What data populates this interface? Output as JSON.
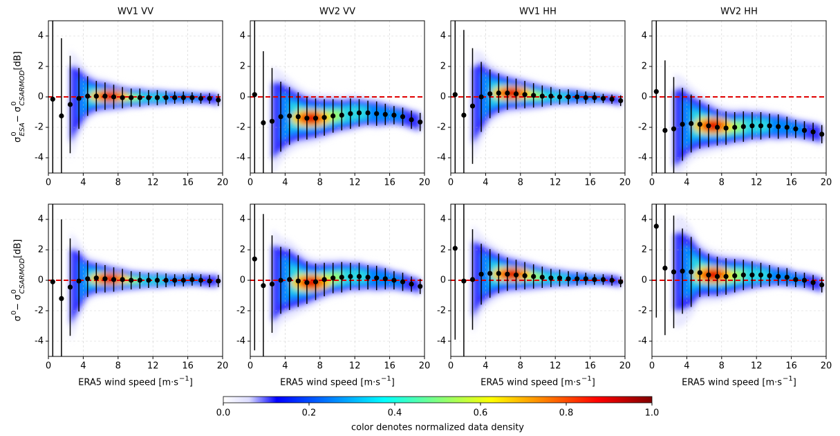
{
  "chart_data": [
    {
      "type": "errorbar",
      "title": "WV1 VV",
      "ylabel": [
        {
          "base": "σ",
          "sup": "0",
          "sub": "ESA"
        },
        {
          "base": " − σ",
          "sup": "0",
          "sub": "CSARMOD"
        },
        {
          "base": " [dB]"
        }
      ],
      "x": [
        0.5,
        1.5,
        2.5,
        3.5,
        4.5,
        5.5,
        6.5,
        7.5,
        8.5,
        9.5,
        10.5,
        11.5,
        12.5,
        13.5,
        14.5,
        15.5,
        16.5,
        17.5,
        18.5,
        19.5
      ],
      "values": [
        -0.15,
        -1.25,
        -0.5,
        -0.1,
        0.05,
        0.05,
        0.05,
        0.0,
        -0.05,
        -0.05,
        -0.05,
        -0.05,
        -0.05,
        -0.05,
        -0.05,
        -0.05,
        -0.05,
        -0.1,
        -0.1,
        -0.2
      ],
      "errors": [
        6,
        5.1,
        3.2,
        2.0,
        1.3,
        1.0,
        0.9,
        0.8,
        0.7,
        0.6,
        0.6,
        0.5,
        0.5,
        0.45,
        0.4,
        0.4,
        0.35,
        0.35,
        0.35,
        0.4
      ],
      "hline": 0,
      "hline_color": "#e00000",
      "color": "#000000",
      "xlim": [
        0,
        20
      ],
      "ylim": [
        -5,
        5
      ],
      "xticks": [
        0,
        4,
        8,
        12,
        16,
        20
      ],
      "yticks": [
        -4,
        -2,
        0,
        2,
        4
      ],
      "grid": true
    },
    {
      "type": "errorbar",
      "title": "WV2 VV",
      "x": [
        0.5,
        1.5,
        2.5,
        3.5,
        4.5,
        5.5,
        6.5,
        7.5,
        8.5,
        9.5,
        10.5,
        11.5,
        12.5,
        13.5,
        14.5,
        15.5,
        16.5,
        17.5,
        18.5,
        19.5
      ],
      "values": [
        0.15,
        -1.7,
        -1.6,
        -1.3,
        -1.25,
        -1.3,
        -1.4,
        -1.4,
        -1.35,
        -1.25,
        -1.2,
        -1.1,
        -1.05,
        -1.05,
        -1.1,
        -1.15,
        -1.2,
        -1.3,
        -1.5,
        -1.65
      ],
      "errors": [
        6,
        4.7,
        3.5,
        2.3,
        1.9,
        1.6,
        1.4,
        1.3,
        1.2,
        1.1,
        1.0,
        1.0,
        0.9,
        0.8,
        0.8,
        0.7,
        0.6,
        0.6,
        0.6,
        0.6
      ],
      "hline": 0,
      "hline_color": "#e00000",
      "color": "#000000",
      "xlim": [
        0,
        20
      ],
      "ylim": [
        -5,
        5
      ],
      "xticks": [
        0,
        4,
        8,
        12,
        16,
        20
      ],
      "yticks": [
        -4,
        -2,
        0,
        2,
        4
      ],
      "grid": true
    },
    {
      "type": "errorbar",
      "title": "WV1 HH",
      "x": [
        0.5,
        1.5,
        2.5,
        3.5,
        4.5,
        5.5,
        6.5,
        7.5,
        8.5,
        9.5,
        10.5,
        11.5,
        12.5,
        13.5,
        14.5,
        15.5,
        16.5,
        17.5,
        18.5,
        19.5
      ],
      "values": [
        0.15,
        -1.2,
        -0.6,
        0.0,
        0.2,
        0.25,
        0.25,
        0.2,
        0.15,
        0.1,
        0.05,
        0.05,
        0.0,
        0.0,
        0.0,
        -0.05,
        -0.05,
        -0.1,
        -0.15,
        -0.25
      ],
      "errors": [
        6,
        5.6,
        3.8,
        2.3,
        1.6,
        1.3,
        1.1,
        1.0,
        0.9,
        0.8,
        0.7,
        0.6,
        0.5,
        0.5,
        0.45,
        0.4,
        0.35,
        0.3,
        0.3,
        0.35
      ],
      "hline": 0,
      "hline_color": "#e00000",
      "color": "#000000",
      "xlim": [
        0,
        20
      ],
      "ylim": [
        -5,
        5
      ],
      "xticks": [
        0,
        4,
        8,
        12,
        16,
        20
      ],
      "yticks": [
        -4,
        -2,
        0,
        2,
        4
      ],
      "grid": true
    },
    {
      "type": "errorbar",
      "title": "WV2 HH",
      "x": [
        0.5,
        1.5,
        2.5,
        3.5,
        4.5,
        5.5,
        6.5,
        7.5,
        8.5,
        9.5,
        10.5,
        11.5,
        12.5,
        13.5,
        14.5,
        15.5,
        16.5,
        17.5,
        18.5,
        19.5
      ],
      "values": [
        0.35,
        -2.2,
        -2.1,
        -1.8,
        -1.75,
        -1.8,
        -1.9,
        -2.0,
        -2.05,
        -2.0,
        -1.95,
        -1.9,
        -1.9,
        -1.9,
        -1.95,
        -2.0,
        -2.1,
        -2.2,
        -2.3,
        -2.45
      ],
      "errors": [
        6,
        4.6,
        3.4,
        2.4,
        1.9,
        1.6,
        1.4,
        1.2,
        1.1,
        1.0,
        1.0,
        0.9,
        0.9,
        0.8,
        0.8,
        0.7,
        0.6,
        0.6,
        0.6,
        0.6
      ],
      "hline": 0,
      "hline_color": "#e00000",
      "color": "#000000",
      "xlim": [
        0,
        20
      ],
      "ylim": [
        -5,
        5
      ],
      "xticks": [
        0,
        4,
        8,
        12,
        16,
        20
      ],
      "yticks": [
        -4,
        -2,
        0,
        2,
        4
      ],
      "grid": true
    },
    {
      "type": "errorbar",
      "ylabel": [
        {
          "base": "σ",
          "sup": "0"
        },
        {
          "base": " − σ",
          "sup": "0",
          "sub": "CSARMOD"
        },
        {
          "base": " [dB]"
        }
      ],
      "xlabel": [
        {
          "base": "ERA5 wind speed [m·s",
          "sup": "−1"
        },
        {
          "base": "]"
        }
      ],
      "x": [
        0.5,
        1.5,
        2.5,
        3.5,
        4.5,
        5.5,
        6.5,
        7.5,
        8.5,
        9.5,
        10.5,
        11.5,
        12.5,
        13.5,
        14.5,
        15.5,
        16.5,
        17.5,
        18.5,
        19.5
      ],
      "values": [
        -0.1,
        -1.2,
        -0.45,
        -0.05,
        0.1,
        0.15,
        0.1,
        0.05,
        0.05,
        0.0,
        0.0,
        0.0,
        0.0,
        0.0,
        0.0,
        0.0,
        0.05,
        0.0,
        -0.05,
        -0.05
      ],
      "errors": [
        6,
        5.2,
        3.2,
        2.0,
        1.2,
        1.0,
        0.9,
        0.8,
        0.7,
        0.6,
        0.55,
        0.5,
        0.5,
        0.45,
        0.4,
        0.4,
        0.4,
        0.4,
        0.4,
        0.4
      ],
      "hline": 0,
      "hline_color": "#e00000",
      "color": "#000000",
      "xlim": [
        0,
        20
      ],
      "ylim": [
        -5,
        5
      ],
      "xticks": [
        0,
        4,
        8,
        12,
        16,
        20
      ],
      "yticks": [
        -4,
        -2,
        0,
        2,
        4
      ],
      "grid": true
    },
    {
      "type": "errorbar",
      "xlabel": [
        {
          "base": "ERA5 wind speed [m·s",
          "sup": "−1"
        },
        {
          "base": "]"
        }
      ],
      "x": [
        0.5,
        1.5,
        2.5,
        3.5,
        4.5,
        5.5,
        6.5,
        7.5,
        8.5,
        9.5,
        10.5,
        11.5,
        12.5,
        13.5,
        14.5,
        15.5,
        16.5,
        17.5,
        18.5,
        19.5
      ],
      "values": [
        1.4,
        -0.35,
        -0.25,
        0.0,
        0.05,
        -0.05,
        -0.15,
        -0.1,
        0.05,
        0.15,
        0.2,
        0.25,
        0.25,
        0.2,
        0.15,
        0.1,
        0.0,
        -0.1,
        -0.25,
        -0.4
      ],
      "errors": [
        6,
        4.7,
        3.2,
        2.2,
        2.0,
        1.7,
        1.4,
        1.2,
        1.1,
        1.0,
        1.0,
        0.9,
        0.9,
        0.8,
        0.8,
        0.7,
        0.6,
        0.6,
        0.5,
        0.5
      ],
      "hline": 0,
      "hline_color": "#e00000",
      "color": "#000000",
      "xlim": [
        0,
        20
      ],
      "ylim": [
        -5,
        5
      ],
      "xticks": [
        0,
        4,
        8,
        12,
        16,
        20
      ],
      "yticks": [
        -4,
        -2,
        0,
        2,
        4
      ],
      "grid": true
    },
    {
      "type": "errorbar",
      "xlabel": [
        {
          "base": "ERA5 wind speed [m·s",
          "sup": "−1"
        },
        {
          "base": "]"
        }
      ],
      "x": [
        0.5,
        1.5,
        2.5,
        3.5,
        4.5,
        5.5,
        6.5,
        7.5,
        8.5,
        9.5,
        10.5,
        11.5,
        12.5,
        13.5,
        14.5,
        15.5,
        16.5,
        17.5,
        18.5,
        19.5
      ],
      "values": [
        2.1,
        -0.05,
        0.05,
        0.4,
        0.45,
        0.45,
        0.4,
        0.35,
        0.3,
        0.25,
        0.2,
        0.15,
        0.15,
        0.1,
        0.1,
        0.1,
        0.05,
        0.05,
        0.0,
        -0.1
      ],
      "errors": [
        6,
        5.5,
        3.3,
        2.0,
        1.6,
        1.3,
        1.1,
        1.0,
        0.9,
        0.8,
        0.7,
        0.6,
        0.55,
        0.5,
        0.45,
        0.4,
        0.35,
        0.35,
        0.35,
        0.35
      ],
      "hline": 0,
      "hline_color": "#e00000",
      "color": "#000000",
      "xlim": [
        0,
        20
      ],
      "ylim": [
        -5,
        5
      ],
      "xticks": [
        0,
        4,
        8,
        12,
        16,
        20
      ],
      "yticks": [
        -4,
        -2,
        0,
        2,
        4
      ],
      "grid": true
    },
    {
      "type": "errorbar",
      "xlabel": [
        {
          "base": "ERA5 wind speed [m·s",
          "sup": "−1"
        },
        {
          "base": "]"
        }
      ],
      "x": [
        0.5,
        1.5,
        2.5,
        3.5,
        4.5,
        5.5,
        6.5,
        7.5,
        8.5,
        9.5,
        10.5,
        11.5,
        12.5,
        13.5,
        14.5,
        15.5,
        16.5,
        17.5,
        18.5,
        19.5
      ],
      "values": [
        3.55,
        0.8,
        0.55,
        0.6,
        0.55,
        0.5,
        0.35,
        0.25,
        0.25,
        0.3,
        0.35,
        0.35,
        0.35,
        0.3,
        0.25,
        0.2,
        0.05,
        0.0,
        -0.15,
        -0.3
      ],
      "errors": [
        6,
        4.4,
        3.7,
        2.8,
        2.3,
        1.6,
        1.4,
        1.3,
        1.2,
        1.1,
        1.0,
        0.9,
        0.8,
        0.7,
        0.6,
        0.6,
        0.5,
        0.5,
        0.5,
        0.5
      ],
      "hline": 0,
      "hline_color": "#e00000",
      "color": "#000000",
      "xlim": [
        0,
        20
      ],
      "ylim": [
        -5,
        5
      ],
      "xticks": [
        0,
        4,
        8,
        12,
        16,
        20
      ],
      "yticks": [
        -4,
        -2,
        0,
        2,
        4
      ],
      "grid": true
    }
  ],
  "colorbar": {
    "colormap": "jet",
    "lim": [
      0,
      1
    ],
    "ticks": [
      {
        "value": 0,
        "label": "0.0"
      },
      0.2,
      0.4,
      0.6,
      0.8,
      {
        "value": 1,
        "label": "1.0"
      }
    ],
    "label": "color denotes normalized data density"
  }
}
